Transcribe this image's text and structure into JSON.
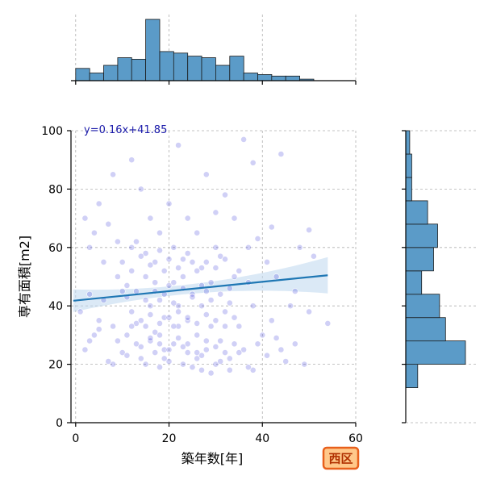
{
  "chart_data": {
    "type": "scatter",
    "subtype": "joint-plot with marginal histograms and linear regression",
    "xlabel": "築年数[年]",
    "ylabel": "専有面積[m2]",
    "xlim": [
      -1,
      60
    ],
    "ylim": [
      0,
      100
    ],
    "x_ticks": [
      "0",
      "20",
      "40",
      "60"
    ],
    "y_ticks": [
      "0",
      "20",
      "40",
      "60",
      "80",
      "100"
    ],
    "grid": true,
    "regression": {
      "label": "y=0.16x+41.85",
      "slope": 0.16,
      "intercept": 41.85,
      "x_range": [
        -0.5,
        54
      ]
    },
    "badge": "西区",
    "colors": {
      "points": "#2b2bd6",
      "hist": "#5b9bc8",
      "line": "#1f77b4",
      "band": "#bdd7ee",
      "badge_fill": "#ffc88a",
      "badge_border": "#e8601c",
      "badge_text": "#b03000"
    },
    "marginal_x_hist": {
      "bin_edges": [
        0,
        3,
        6,
        9,
        12,
        15,
        18,
        21,
        24,
        27,
        30,
        33,
        36,
        39,
        42,
        45,
        48,
        51,
        54
      ],
      "counts": [
        8,
        5,
        10,
        15,
        14,
        40,
        19,
        18,
        16,
        15,
        10,
        16,
        5,
        4,
        3,
        3,
        1,
        0
      ]
    },
    "marginal_y_hist": {
      "bin_edges": [
        12,
        20,
        28,
        36,
        44,
        52,
        60,
        68,
        76,
        84,
        92,
        100
      ],
      "counts": [
        6,
        30,
        20,
        17,
        8,
        14,
        16,
        11,
        3,
        3,
        2
      ]
    },
    "points": [
      [
        2,
        25
      ],
      [
        3,
        44
      ],
      [
        4,
        30
      ],
      [
        5,
        35
      ],
      [
        6,
        42
      ],
      [
        8,
        20
      ],
      [
        8,
        33
      ],
      [
        10,
        24
      ],
      [
        10,
        45
      ],
      [
        11,
        30
      ],
      [
        12,
        38
      ],
      [
        12,
        60
      ],
      [
        13,
        27
      ],
      [
        14,
        22
      ],
      [
        15,
        33
      ],
      [
        15,
        50
      ],
      [
        16,
        28
      ],
      [
        16,
        40
      ],
      [
        17,
        24
      ],
      [
        17,
        55
      ],
      [
        18,
        19
      ],
      [
        18,
        30
      ],
      [
        18,
        42
      ],
      [
        19,
        25
      ],
      [
        19,
        36
      ],
      [
        20,
        21
      ],
      [
        20,
        47
      ],
      [
        21,
        27
      ],
      [
        21,
        60
      ],
      [
        22,
        33
      ],
      [
        22,
        40
      ],
      [
        23,
        20
      ],
      [
        23,
        50
      ],
      [
        24,
        24
      ],
      [
        24,
        35
      ],
      [
        25,
        55
      ],
      [
        26,
        22
      ],
      [
        26,
        30
      ],
      [
        27,
        40
      ],
      [
        27,
        18
      ],
      [
        28,
        25
      ],
      [
        28,
        45
      ],
      [
        29,
        33
      ],
      [
        30,
        20
      ],
      [
        30,
        60
      ],
      [
        31,
        28
      ],
      [
        32,
        38
      ],
      [
        33,
        22
      ],
      [
        34,
        50
      ],
      [
        35,
        33
      ],
      [
        36,
        25
      ],
      [
        37,
        60
      ],
      [
        38,
        18
      ],
      [
        38,
        40
      ],
      [
        40,
        30
      ],
      [
        41,
        55
      ],
      [
        42,
        35
      ],
      [
        44,
        25
      ],
      [
        46,
        40
      ],
      [
        50,
        38
      ],
      [
        5,
        75
      ],
      [
        8,
        85
      ],
      [
        12,
        90
      ],
      [
        14,
        80
      ],
      [
        16,
        70
      ],
      [
        18,
        65
      ],
      [
        20,
        75
      ],
      [
        22,
        95
      ],
      [
        24,
        70
      ],
      [
        26,
        65
      ],
      [
        28,
        85
      ],
      [
        30,
        72
      ],
      [
        32,
        78
      ],
      [
        34,
        70
      ],
      [
        36,
        97
      ],
      [
        38,
        89
      ],
      [
        42,
        67
      ],
      [
        44,
        92
      ],
      [
        48,
        60
      ],
      [
        50,
        66
      ],
      [
        3,
        60
      ],
      [
        6,
        55
      ],
      [
        9,
        50
      ],
      [
        11,
        47
      ],
      [
        13,
        62
      ],
      [
        15,
        58
      ],
      [
        17,
        45
      ],
      [
        19,
        52
      ],
      [
        21,
        48
      ],
      [
        23,
        56
      ],
      [
        25,
        44
      ],
      [
        27,
        53
      ],
      [
        29,
        48
      ],
      [
        31,
        57
      ],
      [
        33,
        46
      ],
      [
        35,
        52
      ],
      [
        37,
        48
      ],
      [
        39,
        63
      ],
      [
        43,
        50
      ],
      [
        47,
        45
      ],
      [
        51,
        57
      ],
      [
        54,
        34
      ],
      [
        2,
        70
      ],
      [
        4,
        65
      ],
      [
        7,
        68
      ],
      [
        9,
        62
      ],
      [
        1,
        38
      ],
      [
        3,
        28
      ],
      [
        5,
        32
      ],
      [
        7,
        21
      ],
      [
        9,
        28
      ],
      [
        11,
        23
      ],
      [
        13,
        34
      ],
      [
        15,
        20
      ],
      [
        17,
        31
      ],
      [
        19,
        22
      ],
      [
        21,
        33
      ],
      [
        23,
        26
      ],
      [
        25,
        19
      ],
      [
        27,
        23
      ],
      [
        29,
        17
      ],
      [
        31,
        21
      ],
      [
        33,
        18
      ],
      [
        35,
        24
      ],
      [
        37,
        19
      ],
      [
        39,
        27
      ],
      [
        41,
        23
      ],
      [
        43,
        29
      ],
      [
        45,
        21
      ],
      [
        47,
        27
      ],
      [
        49,
        20
      ],
      [
        14,
        26
      ],
      [
        16,
        29
      ],
      [
        18,
        27
      ],
      [
        20,
        25
      ],
      [
        22,
        29
      ],
      [
        24,
        27
      ],
      [
        26,
        24
      ],
      [
        28,
        28
      ],
      [
        30,
        26
      ],
      [
        32,
        24
      ],
      [
        34,
        27
      ],
      [
        12,
        33
      ],
      [
        14,
        35
      ],
      [
        16,
        37
      ],
      [
        18,
        34
      ],
      [
        20,
        36
      ],
      [
        22,
        38
      ],
      [
        24,
        36
      ],
      [
        26,
        34
      ],
      [
        28,
        37
      ],
      [
        30,
        35
      ],
      [
        32,
        33
      ],
      [
        34,
        36
      ],
      [
        10,
        55
      ],
      [
        12,
        52
      ],
      [
        14,
        57
      ],
      [
        16,
        54
      ],
      [
        18,
        59
      ],
      [
        20,
        56
      ],
      [
        22,
        53
      ],
      [
        24,
        58
      ],
      [
        26,
        52
      ],
      [
        28,
        55
      ],
      [
        30,
        53
      ],
      [
        32,
        56
      ],
      [
        11,
        43
      ],
      [
        13,
        45
      ],
      [
        15,
        42
      ],
      [
        17,
        48
      ],
      [
        19,
        44
      ],
      [
        21,
        41
      ],
      [
        23,
        46
      ],
      [
        25,
        43
      ],
      [
        27,
        47
      ],
      [
        29,
        42
      ],
      [
        31,
        44
      ],
      [
        33,
        41
      ]
    ]
  }
}
